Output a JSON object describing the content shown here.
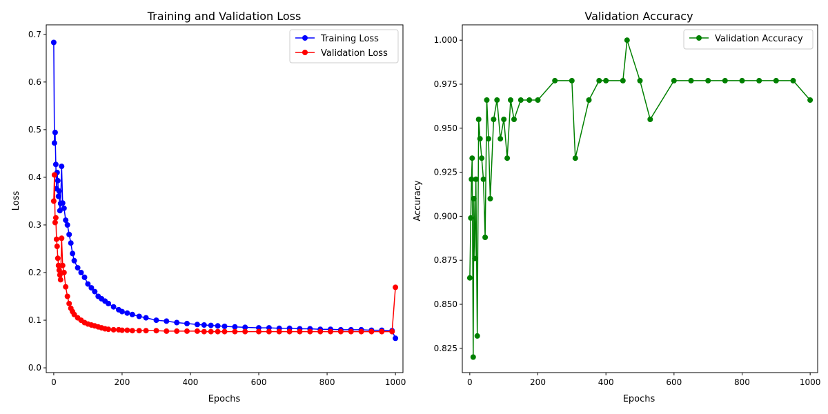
{
  "chart_data": [
    {
      "type": "line",
      "title": "Training and Validation Loss",
      "xlabel": "Epochs",
      "ylabel": "Loss",
      "xlim": [
        -22,
        1022
      ],
      "ylim": [
        -0.01,
        0.72
      ],
      "xticks": [
        0,
        200,
        400,
        600,
        800,
        1000
      ],
      "yticks": [
        0.0,
        0.1,
        0.2,
        0.3,
        0.4,
        0.5,
        0.6,
        0.7
      ],
      "ytick_labels": [
        "0.0",
        "0.1",
        "0.2",
        "0.3",
        "0.4",
        "0.5",
        "0.6",
        "0.7"
      ],
      "grid": false,
      "legend": "top-right",
      "markers": "circle",
      "series": [
        {
          "name": "Training Loss",
          "color": "#0000ff",
          "x": [
            0,
            2,
            4,
            6,
            8,
            10,
            12,
            14,
            16,
            18,
            20,
            23,
            26,
            30,
            35,
            40,
            45,
            50,
            55,
            60,
            70,
            80,
            90,
            100,
            110,
            120,
            130,
            140,
            150,
            160,
            175,
            190,
            200,
            215,
            230,
            250,
            270,
            300,
            330,
            360,
            390,
            420,
            440,
            460,
            480,
            500,
            530,
            560,
            600,
            630,
            660,
            690,
            720,
            750,
            780,
            810,
            840,
            870,
            900,
            930,
            960,
            990,
            1000
          ],
          "y": [
            0.683,
            0.472,
            0.494,
            0.427,
            0.376,
            0.41,
            0.393,
            0.36,
            0.371,
            0.33,
            0.345,
            0.423,
            0.346,
            0.335,
            0.31,
            0.3,
            0.28,
            0.262,
            0.24,
            0.225,
            0.21,
            0.2,
            0.19,
            0.176,
            0.168,
            0.16,
            0.15,
            0.145,
            0.14,
            0.135,
            0.128,
            0.122,
            0.118,
            0.115,
            0.112,
            0.108,
            0.105,
            0.1,
            0.098,
            0.095,
            0.093,
            0.091,
            0.09,
            0.089,
            0.088,
            0.087,
            0.086,
            0.085,
            0.084,
            0.084,
            0.083,
            0.083,
            0.082,
            0.082,
            0.081,
            0.081,
            0.08,
            0.08,
            0.08,
            0.079,
            0.079,
            0.078,
            0.062
          ]
        },
        {
          "name": "Validation Loss",
          "color": "#ff0000",
          "x": [
            0,
            2,
            4,
            6,
            8,
            10,
            12,
            14,
            16,
            18,
            20,
            23,
            26,
            30,
            35,
            40,
            45,
            50,
            55,
            60,
            70,
            80,
            90,
            100,
            110,
            120,
            130,
            140,
            150,
            160,
            175,
            190,
            200,
            215,
            230,
            250,
            270,
            300,
            330,
            360,
            390,
            420,
            440,
            460,
            480,
            500,
            530,
            560,
            600,
            630,
            660,
            690,
            720,
            750,
            780,
            810,
            840,
            870,
            900,
            930,
            960,
            990,
            1000
          ],
          "y": [
            0.35,
            0.405,
            0.305,
            0.315,
            0.27,
            0.255,
            0.23,
            0.215,
            0.205,
            0.195,
            0.185,
            0.272,
            0.215,
            0.2,
            0.17,
            0.15,
            0.135,
            0.125,
            0.118,
            0.112,
            0.105,
            0.1,
            0.095,
            0.092,
            0.09,
            0.088,
            0.086,
            0.084,
            0.082,
            0.081,
            0.08,
            0.08,
            0.079,
            0.079,
            0.078,
            0.078,
            0.078,
            0.078,
            0.077,
            0.077,
            0.077,
            0.077,
            0.076,
            0.076,
            0.076,
            0.076,
            0.076,
            0.076,
            0.076,
            0.076,
            0.076,
            0.076,
            0.076,
            0.076,
            0.076,
            0.076,
            0.076,
            0.076,
            0.076,
            0.076,
            0.076,
            0.076,
            0.169
          ]
        }
      ]
    },
    {
      "type": "line",
      "title": "Validation Accuracy",
      "xlabel": "Epochs",
      "ylabel": "Accuracy",
      "xlim": [
        -22,
        1022
      ],
      "ylim": [
        0.8112,
        1.0087
      ],
      "xticks": [
        0,
        200,
        400,
        600,
        800,
        1000
      ],
      "yticks": [
        0.825,
        0.85,
        0.875,
        0.9,
        0.925,
        0.95,
        0.975,
        1.0
      ],
      "ytick_labels": [
        "0.825",
        "0.850",
        "0.875",
        "0.900",
        "0.925",
        "0.950",
        "0.975",
        "1.000"
      ],
      "grid": false,
      "legend": "top-right",
      "markers": "circle",
      "series": [
        {
          "name": "Validation Accuracy",
          "color": "#008000",
          "x": [
            0,
            3,
            5,
            7,
            10,
            12,
            15,
            18,
            22,
            26,
            30,
            35,
            40,
            45,
            50,
            55,
            60,
            70,
            80,
            90,
            100,
            110,
            120,
            130,
            150,
            175,
            200,
            250,
            300,
            310,
            350,
            380,
            400,
            450,
            462,
            500,
            530,
            600,
            650,
            700,
            750,
            800,
            850,
            900,
            950,
            1000
          ],
          "y": [
            0.865,
            0.899,
            0.921,
            0.933,
            0.82,
            0.91,
            0.876,
            0.921,
            0.832,
            0.955,
            0.944,
            0.933,
            0.921,
            0.888,
            0.966,
            0.944,
            0.91,
            0.955,
            0.966,
            0.944,
            0.955,
            0.933,
            0.966,
            0.955,
            0.966,
            0.966,
            0.966,
            0.977,
            0.977,
            0.933,
            0.966,
            0.977,
            0.977,
            0.977,
            1.0,
            0.977,
            0.955,
            0.977,
            0.977,
            0.977,
            0.977,
            0.977,
            0.977,
            0.977,
            0.977,
            0.966
          ]
        }
      ]
    }
  ]
}
